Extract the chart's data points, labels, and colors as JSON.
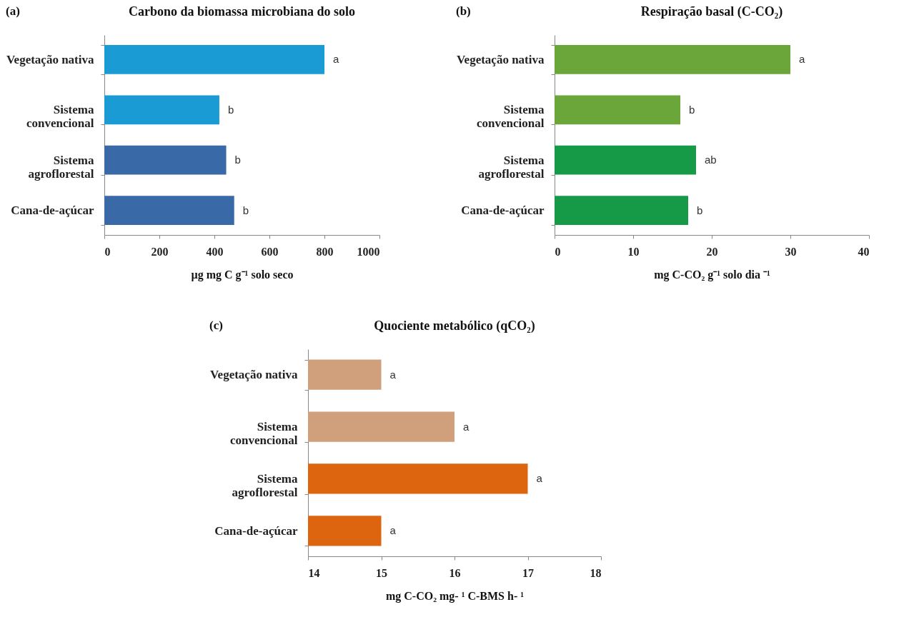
{
  "chart_data": [
    {
      "type": "bar",
      "orientation": "horizontal",
      "title": "Carbono da biomassa microbiana do solo",
      "xlabel": "µg  mg C g⁻¹ solo seco",
      "categories": [
        "Vegetação nativa",
        "Sistema convencional",
        "Sistema agroflorestal",
        "Cana-de-açúcar"
      ],
      "values": [
        800,
        418,
        443,
        472
      ],
      "colors": [
        "#1b9bd3",
        "#1b9bd3",
        "#3a69a8",
        "#3a69a8"
      ],
      "xlim": [
        0,
        1000
      ],
      "xticks": [
        0,
        200,
        400,
        600,
        800,
        1000
      ],
      "grid": false,
      "legend": false,
      "annotations": [
        "(a)",
        {
          "text": "a",
          "x": 800,
          "y": "Vegetação nativa"
        },
        {
          "text": "b",
          "x": 418,
          "y": "Sistema convencional"
        },
        {
          "text": "b",
          "x": 443,
          "y": "Sistema agroflorestal"
        },
        {
          "text": "b",
          "x": 472,
          "y": "Cana-de-açúcar"
        }
      ]
    },
    {
      "type": "bar",
      "orientation": "horizontal",
      "title": "Respiração basal (C-CO₂)",
      "xlabel": "mg C-CO₂ g⁻¹ solo dia ⁻¹",
      "categories": [
        "Vegetação nativa",
        "Sistema convencional",
        "Sistema agroflorestal",
        "Cana-de-açúcar"
      ],
      "values": [
        30,
        16,
        18,
        17
      ],
      "colors": [
        "#6aa63a",
        "#6aa63a",
        "#179a48",
        "#179a48"
      ],
      "xlim": [
        0,
        40
      ],
      "xticks": [
        0,
        10,
        20,
        30,
        40
      ],
      "grid": false,
      "legend": false,
      "annotations": [
        "(b)",
        {
          "text": "a",
          "x": 30,
          "y": "Vegetação nativa"
        },
        {
          "text": "b",
          "x": 16,
          "y": "Sistema convencional"
        },
        {
          "text": "ab",
          "x": 18,
          "y": "Sistema agroflorestal"
        },
        {
          "text": "b",
          "x": 17,
          "y": "Cana-de-açúcar"
        }
      ]
    },
    {
      "type": "bar",
      "orientation": "horizontal",
      "title": "Quociente metabólico (qCO₂)",
      "xlabel": "mg C-CO₂ mg- ¹ C-BMS h- ¹",
      "categories": [
        "Vegetação nativa",
        "Sistema convencional",
        "Sistema agroflorestal",
        "Cana-de-açúcar"
      ],
      "values": [
        15,
        16,
        17,
        15
      ],
      "colors": [
        "#d0a07c",
        "#d0a07c",
        "#dd6510",
        "#dd6510"
      ],
      "xlim": [
        14,
        18
      ],
      "xticks": [
        14,
        15,
        16,
        17,
        18
      ],
      "grid": false,
      "legend": false,
      "annotations": [
        "(c)",
        {
          "text": "a",
          "x": 15,
          "y": "Vegetação nativa"
        },
        {
          "text": "a",
          "x": 16,
          "y": "Sistema convencional"
        },
        {
          "text": "a",
          "x": 17,
          "y": "Sistema agroflorestal"
        },
        {
          "text": "a",
          "x": 15,
          "y": "Cana-de-açúcar"
        }
      ]
    }
  ]
}
